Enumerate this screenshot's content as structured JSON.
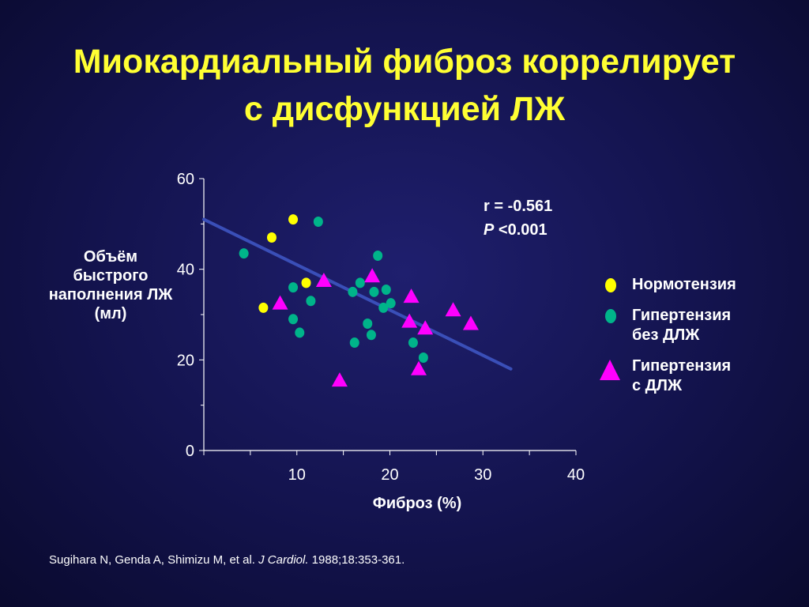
{
  "title": {
    "line1": "Миокардиальный фиброз коррелирует",
    "line2": "с дисфункцией ЛЖ"
  },
  "stats": {
    "r_text": "r = -0.561",
    "p_symbol": "P",
    "p_rest": " <0.001"
  },
  "legend": [
    {
      "label": "Нормотензия",
      "marker": "circle",
      "color": "#ffff00"
    },
    {
      "label": "Гипертензия\nбез ДЛЖ",
      "marker": "circle",
      "color": "#00b48a"
    },
    {
      "label": "Гипертензия\nс ДЛЖ",
      "marker": "triangle",
      "color": "#ff00ff"
    }
  ],
  "citation": {
    "authors": "Sugihara N, Genda A, Shimizu M, et al. ",
    "journal": "J Cardiol.",
    "rest": " 1988;18:353-361."
  },
  "chart_data": {
    "type": "scatter",
    "title": "Миокардиальный фиброз коррелирует с дисфункцией ЛЖ",
    "xlabel": "Фиброз (%)",
    "ylabel": "Объём быстрого наполнения ЛЖ (мл)",
    "xlim": [
      0,
      40
    ],
    "ylim": [
      0,
      60
    ],
    "xticks": [
      10,
      20,
      30,
      40
    ],
    "yticks": [
      0,
      20,
      40,
      60
    ],
    "grid": false,
    "legend_position": "right",
    "colors": {
      "axis": "#ffffff",
      "regression": "#3a4fb8"
    },
    "regression": {
      "x": [
        0,
        33
      ],
      "y": [
        51,
        18
      ]
    },
    "series": [
      {
        "name": "Нормотензия",
        "marker": "circle",
        "color": "#ffff00",
        "points": [
          {
            "x": 9.6,
            "y": 51
          },
          {
            "x": 7.3,
            "y": 47
          },
          {
            "x": 11.0,
            "y": 37
          },
          {
            "x": 6.4,
            "y": 31.5
          }
        ]
      },
      {
        "name": "Гипертензия без ДЛЖ",
        "marker": "circle",
        "color": "#00b48a",
        "points": [
          {
            "x": 12.3,
            "y": 50.5
          },
          {
            "x": 4.3,
            "y": 43.5
          },
          {
            "x": 9.6,
            "y": 36
          },
          {
            "x": 11.5,
            "y": 33
          },
          {
            "x": 9.6,
            "y": 29
          },
          {
            "x": 10.3,
            "y": 26
          },
          {
            "x": 18.7,
            "y": 43
          },
          {
            "x": 16.8,
            "y": 37
          },
          {
            "x": 16.0,
            "y": 35
          },
          {
            "x": 18.3,
            "y": 35
          },
          {
            "x": 19.6,
            "y": 35.5
          },
          {
            "x": 20.1,
            "y": 32.5
          },
          {
            "x": 19.3,
            "y": 31.5
          },
          {
            "x": 17.6,
            "y": 28
          },
          {
            "x": 18.0,
            "y": 25.5
          },
          {
            "x": 16.2,
            "y": 23.8
          },
          {
            "x": 22.5,
            "y": 23.8
          },
          {
            "x": 23.6,
            "y": 20.5
          }
        ]
      },
      {
        "name": "Гипертензия с ДЛЖ",
        "marker": "triangle",
        "color": "#ff00ff",
        "points": [
          {
            "x": 12.9,
            "y": 37.5
          },
          {
            "x": 8.2,
            "y": 32.5
          },
          {
            "x": 18.1,
            "y": 38.5
          },
          {
            "x": 22.3,
            "y": 34
          },
          {
            "x": 22.1,
            "y": 28.5
          },
          {
            "x": 23.8,
            "y": 27
          },
          {
            "x": 26.8,
            "y": 31
          },
          {
            "x": 28.7,
            "y": 28
          },
          {
            "x": 14.6,
            "y": 15.5
          },
          {
            "x": 23.1,
            "y": 18
          }
        ]
      }
    ]
  }
}
